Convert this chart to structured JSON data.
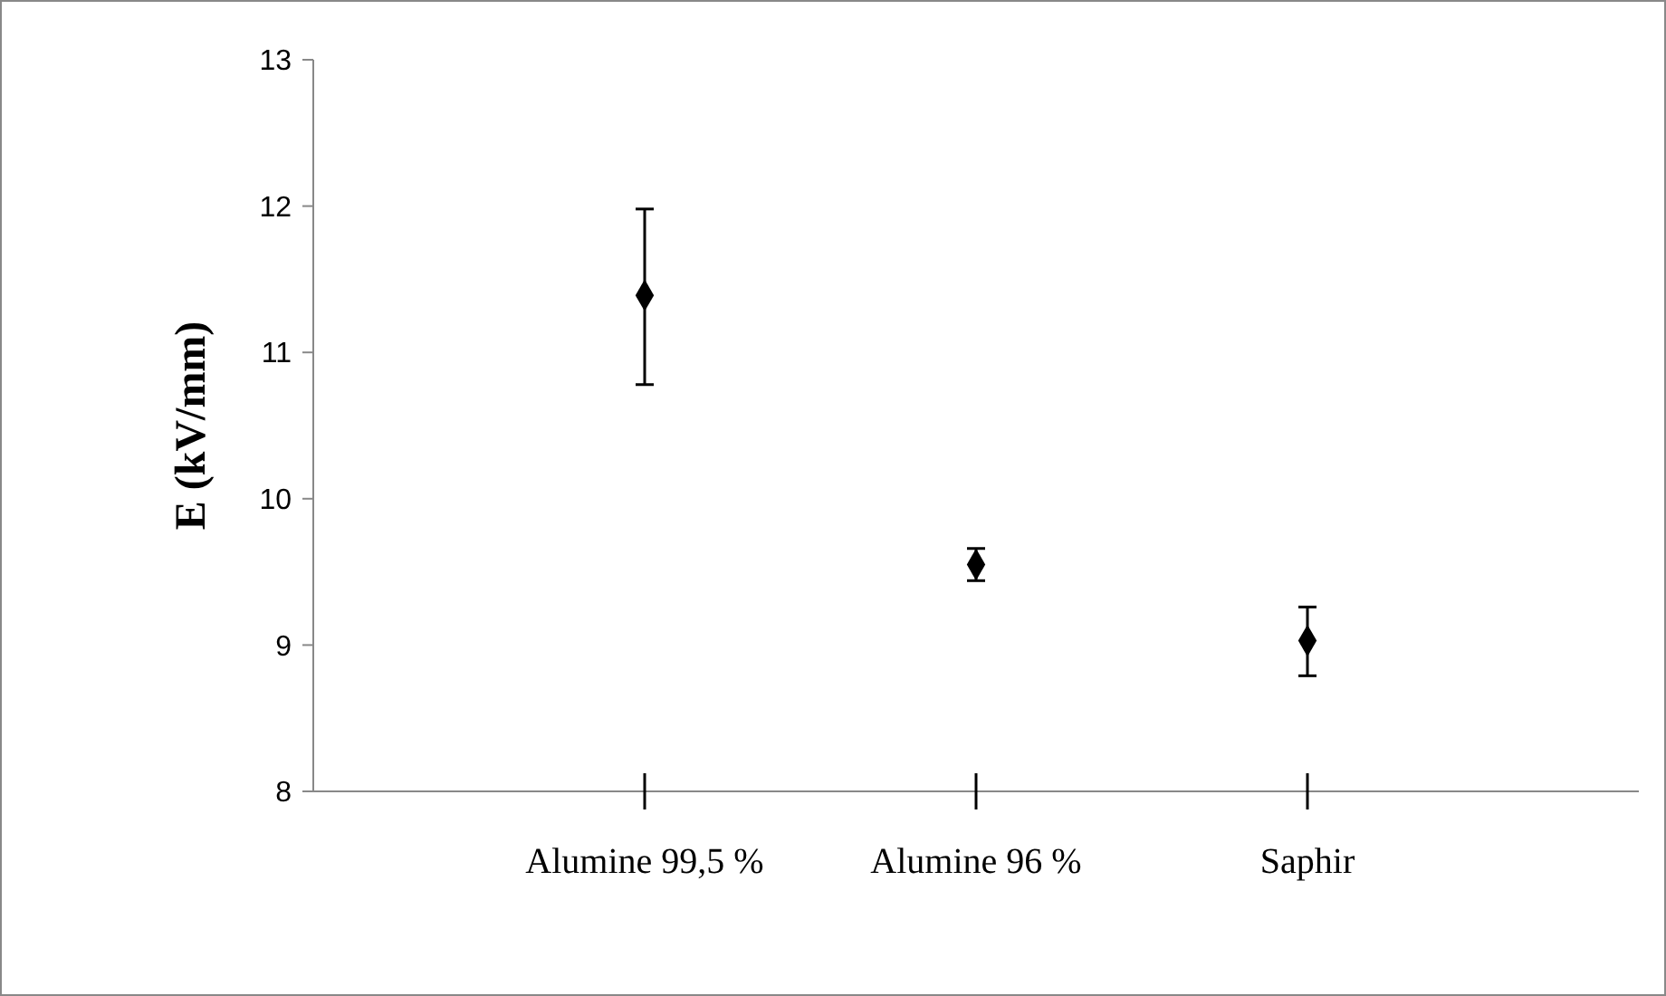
{
  "chart_data": {
    "type": "scatter",
    "ylabel": "E (kV/mm)",
    "categories": [
      "Alumine 99,5 %",
      "Alumine 96 %",
      "Saphir"
    ],
    "values": [
      11.39,
      9.55,
      9.03
    ],
    "errors": [
      [
        10.78,
        11.98
      ],
      [
        9.44,
        9.66
      ],
      [
        8.79,
        9.26
      ]
    ],
    "color": "#000000",
    "marker": "diamond",
    "grid": false,
    "ylim": [
      8,
      13
    ],
    "yticks": [
      8,
      9,
      10,
      11,
      12,
      13
    ]
  }
}
